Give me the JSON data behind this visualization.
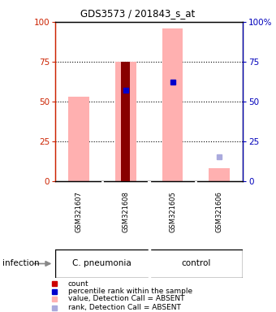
{
  "title": "GDS3573 / 201843_s_at",
  "samples": [
    "GSM321607",
    "GSM321608",
    "GSM321605",
    "GSM321606"
  ],
  "group_labels": [
    "C. pneumonia",
    "control"
  ],
  "infection_label": "infection",
  "ylim": [
    0,
    100
  ],
  "yticks": [
    0,
    25,
    50,
    75,
    100
  ],
  "left_axis_color": "#CC2200",
  "right_axis_color": "#0000BB",
  "pink_values": [
    53,
    75,
    96,
    8
  ],
  "red_bar_idx": 1,
  "red_bar_value": 75,
  "blue_sq_idxs": [
    1,
    2
  ],
  "blue_sq_values": [
    57,
    62
  ],
  "light_blue_sq_idx": 3,
  "light_blue_sq_value": 15,
  "pink_color": "#FFB0B0",
  "light_blue_color": "#AAAADD",
  "red_color": "#880000",
  "blue_color": "#0000CC",
  "legend_items": [
    "count",
    "percentile rank within the sample",
    "value, Detection Call = ABSENT",
    "rank, Detection Call = ABSENT"
  ],
  "legend_colors": [
    "#CC0000",
    "#0000CC",
    "#FFB0B0",
    "#AAAADD"
  ],
  "bg_color": "#FFFFFF",
  "label_area_color": "#CCCCCC",
  "green_color": "#66DD66"
}
